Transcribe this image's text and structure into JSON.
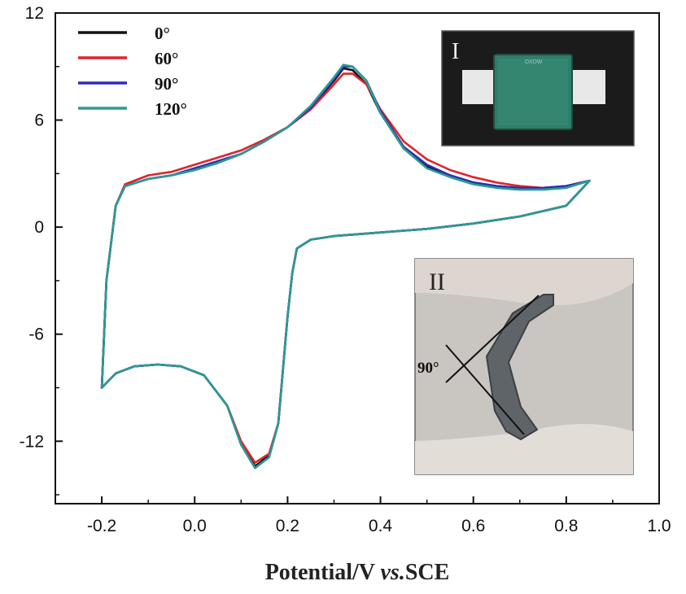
{
  "chart_data": {
    "type": "line",
    "xlabel_main": "Potential/V ",
    "xlabel_italic": "vs.",
    "xlabel_tail": "SCE",
    "ylabel": "",
    "xlim": [
      -0.3,
      1.0
    ],
    "ylim": [
      -15.5,
      12
    ],
    "xticks": [
      "-0.2",
      "0.0",
      "0.2",
      "0.4",
      "0.6",
      "0.8",
      "1.0"
    ],
    "xtick_values": [
      -0.2,
      0.0,
      0.2,
      0.4,
      0.6,
      0.8,
      1.0
    ],
    "yticks": [
      "12",
      "6",
      "0",
      "-6",
      "-12"
    ],
    "ytick_values": [
      12,
      6,
      0,
      -6,
      -12
    ],
    "legend_position": "top-left",
    "series": [
      {
        "name": "0°",
        "color": "#111111",
        "upper": [
          [
            -0.2,
            -9.0
          ],
          [
            -0.19,
            -3.0
          ],
          [
            -0.17,
            1.2
          ],
          [
            -0.15,
            2.3
          ],
          [
            -0.1,
            2.7
          ],
          [
            -0.05,
            2.9
          ],
          [
            0.0,
            3.2
          ],
          [
            0.05,
            3.6
          ],
          [
            0.1,
            4.1
          ],
          [
            0.15,
            4.8
          ],
          [
            0.2,
            5.6
          ],
          [
            0.25,
            6.7
          ],
          [
            0.3,
            8.2
          ],
          [
            0.32,
            8.9
          ],
          [
            0.34,
            8.8
          ],
          [
            0.37,
            8.0
          ],
          [
            0.4,
            6.4
          ],
          [
            0.45,
            4.4
          ],
          [
            0.5,
            3.4
          ],
          [
            0.55,
            2.9
          ],
          [
            0.6,
            2.5
          ],
          [
            0.65,
            2.3
          ],
          [
            0.7,
            2.2
          ],
          [
            0.75,
            2.2
          ],
          [
            0.8,
            2.3
          ],
          [
            0.85,
            2.6
          ]
        ],
        "lower": [
          [
            -0.2,
            -9.0
          ],
          [
            -0.17,
            -8.2
          ],
          [
            -0.13,
            -7.8
          ],
          [
            -0.08,
            -7.7
          ],
          [
            -0.03,
            -7.8
          ],
          [
            0.02,
            -8.3
          ],
          [
            0.07,
            -10.0
          ],
          [
            0.1,
            -12.1
          ],
          [
            0.13,
            -13.4
          ],
          [
            0.16,
            -12.8
          ],
          [
            0.18,
            -11.0
          ],
          [
            0.19,
            -8.0
          ],
          [
            0.2,
            -5.0
          ],
          [
            0.21,
            -2.6
          ],
          [
            0.22,
            -1.2
          ],
          [
            0.25,
            -0.7
          ],
          [
            0.3,
            -0.5
          ],
          [
            0.4,
            -0.3
          ],
          [
            0.5,
            -0.1
          ],
          [
            0.6,
            0.2
          ],
          [
            0.7,
            0.6
          ],
          [
            0.8,
            1.2
          ],
          [
            0.85,
            2.6
          ]
        ]
      },
      {
        "name": "60°",
        "color": "#e0232b",
        "upper": [
          [
            -0.2,
            -9.0
          ],
          [
            -0.19,
            -3.0
          ],
          [
            -0.17,
            1.2
          ],
          [
            -0.15,
            2.4
          ],
          [
            -0.1,
            2.9
          ],
          [
            -0.05,
            3.1
          ],
          [
            0.0,
            3.5
          ],
          [
            0.05,
            3.9
          ],
          [
            0.1,
            4.3
          ],
          [
            0.15,
            4.9
          ],
          [
            0.2,
            5.6
          ],
          [
            0.25,
            6.6
          ],
          [
            0.3,
            8.0
          ],
          [
            0.32,
            8.6
          ],
          [
            0.34,
            8.6
          ],
          [
            0.37,
            8.0
          ],
          [
            0.4,
            6.6
          ],
          [
            0.45,
            4.8
          ],
          [
            0.5,
            3.8
          ],
          [
            0.55,
            3.2
          ],
          [
            0.6,
            2.8
          ],
          [
            0.65,
            2.5
          ],
          [
            0.7,
            2.3
          ],
          [
            0.75,
            2.2
          ],
          [
            0.8,
            2.3
          ],
          [
            0.85,
            2.6
          ]
        ],
        "lower": [
          [
            -0.2,
            -9.0
          ],
          [
            -0.17,
            -8.2
          ],
          [
            -0.13,
            -7.8
          ],
          [
            -0.08,
            -7.7
          ],
          [
            -0.03,
            -7.8
          ],
          [
            0.02,
            -8.3
          ],
          [
            0.07,
            -10.0
          ],
          [
            0.1,
            -12.0
          ],
          [
            0.13,
            -13.2
          ],
          [
            0.16,
            -12.7
          ],
          [
            0.18,
            -11.0
          ],
          [
            0.19,
            -8.0
          ],
          [
            0.2,
            -5.0
          ],
          [
            0.21,
            -2.6
          ],
          [
            0.22,
            -1.2
          ],
          [
            0.25,
            -0.7
          ],
          [
            0.3,
            -0.5
          ],
          [
            0.4,
            -0.3
          ],
          [
            0.5,
            -0.1
          ],
          [
            0.6,
            0.2
          ],
          [
            0.7,
            0.6
          ],
          [
            0.8,
            1.2
          ],
          [
            0.85,
            2.6
          ]
        ]
      },
      {
        "name": "90°",
        "color": "#2b2fb0",
        "upper": [
          [
            -0.2,
            -9.0
          ],
          [
            -0.19,
            -3.0
          ],
          [
            -0.17,
            1.2
          ],
          [
            -0.15,
            2.3
          ],
          [
            -0.1,
            2.7
          ],
          [
            -0.05,
            2.9
          ],
          [
            0.0,
            3.3
          ],
          [
            0.05,
            3.7
          ],
          [
            0.1,
            4.1
          ],
          [
            0.15,
            4.8
          ],
          [
            0.2,
            5.6
          ],
          [
            0.25,
            6.7
          ],
          [
            0.3,
            8.3
          ],
          [
            0.32,
            9.0
          ],
          [
            0.34,
            9.0
          ],
          [
            0.37,
            8.2
          ],
          [
            0.4,
            6.5
          ],
          [
            0.45,
            4.5
          ],
          [
            0.5,
            3.5
          ],
          [
            0.55,
            2.9
          ],
          [
            0.6,
            2.5
          ],
          [
            0.65,
            2.3
          ],
          [
            0.7,
            2.2
          ],
          [
            0.75,
            2.2
          ],
          [
            0.8,
            2.3
          ],
          [
            0.85,
            2.6
          ]
        ],
        "lower": [
          [
            -0.2,
            -9.0
          ],
          [
            -0.17,
            -8.2
          ],
          [
            -0.13,
            -7.8
          ],
          [
            -0.08,
            -7.7
          ],
          [
            -0.03,
            -7.8
          ],
          [
            0.02,
            -8.3
          ],
          [
            0.07,
            -10.0
          ],
          [
            0.1,
            -12.2
          ],
          [
            0.13,
            -13.5
          ],
          [
            0.16,
            -12.9
          ],
          [
            0.18,
            -11.0
          ],
          [
            0.19,
            -8.0
          ],
          [
            0.2,
            -5.0
          ],
          [
            0.21,
            -2.6
          ],
          [
            0.22,
            -1.2
          ],
          [
            0.25,
            -0.7
          ],
          [
            0.3,
            -0.5
          ],
          [
            0.4,
            -0.3
          ],
          [
            0.5,
            -0.1
          ],
          [
            0.6,
            0.2
          ],
          [
            0.7,
            0.6
          ],
          [
            0.8,
            1.2
          ],
          [
            0.85,
            2.6
          ]
        ]
      },
      {
        "name": "120°",
        "color": "#2a9a96",
        "upper": [
          [
            -0.2,
            -9.0
          ],
          [
            -0.19,
            -3.0
          ],
          [
            -0.17,
            1.2
          ],
          [
            -0.15,
            2.3
          ],
          [
            -0.1,
            2.7
          ],
          [
            -0.05,
            2.9
          ],
          [
            0.0,
            3.2
          ],
          [
            0.05,
            3.6
          ],
          [
            0.1,
            4.1
          ],
          [
            0.15,
            4.8
          ],
          [
            0.2,
            5.6
          ],
          [
            0.25,
            6.8
          ],
          [
            0.3,
            8.4
          ],
          [
            0.32,
            9.1
          ],
          [
            0.34,
            9.0
          ],
          [
            0.37,
            8.2
          ],
          [
            0.4,
            6.4
          ],
          [
            0.45,
            4.4
          ],
          [
            0.5,
            3.3
          ],
          [
            0.55,
            2.8
          ],
          [
            0.6,
            2.4
          ],
          [
            0.65,
            2.2
          ],
          [
            0.7,
            2.1
          ],
          [
            0.75,
            2.1
          ],
          [
            0.8,
            2.2
          ],
          [
            0.85,
            2.6
          ]
        ],
        "lower": [
          [
            -0.2,
            -9.0
          ],
          [
            -0.17,
            -8.2
          ],
          [
            -0.13,
            -7.8
          ],
          [
            -0.08,
            -7.7
          ],
          [
            -0.03,
            -7.8
          ],
          [
            0.02,
            -8.3
          ],
          [
            0.07,
            -10.0
          ],
          [
            0.1,
            -12.2
          ],
          [
            0.13,
            -13.5
          ],
          [
            0.16,
            -12.9
          ],
          [
            0.18,
            -11.0
          ],
          [
            0.19,
            -8.0
          ],
          [
            0.2,
            -5.0
          ],
          [
            0.21,
            -2.6
          ],
          [
            0.22,
            -1.2
          ],
          [
            0.25,
            -0.7
          ],
          [
            0.3,
            -0.5
          ],
          [
            0.4,
            -0.3
          ],
          [
            0.5,
            -0.1
          ],
          [
            0.6,
            0.2
          ],
          [
            0.7,
            0.6
          ],
          [
            0.8,
            1.2
          ],
          [
            0.85,
            2.6
          ]
        ]
      }
    ]
  },
  "insets": {
    "photo_1": {
      "label": "I",
      "device_text": "DXDW"
    },
    "photo_2": {
      "label": "II",
      "angle_text": "90°"
    }
  },
  "colors": {
    "inset1_background": "#1b1b1b",
    "device_green": "#2f7d6a",
    "tab_white": "#e8e8e8",
    "inset2_background": "#c9c5c0"
  }
}
